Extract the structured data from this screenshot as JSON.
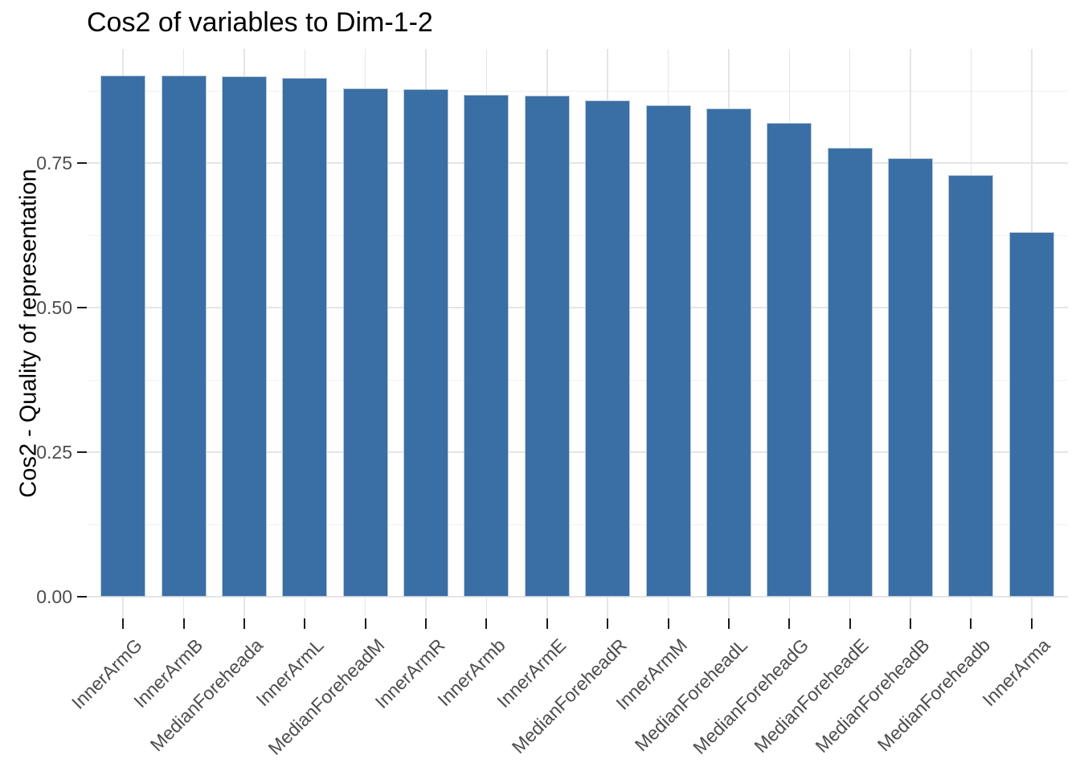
{
  "chart_data": {
    "type": "bar",
    "title": "Cos2 of variables to Dim-1-2",
    "ylabel": "Cos2 - Quality of representation",
    "xlabel": "",
    "legend": "none",
    "grid": true,
    "x_label_angle_deg": 45,
    "categories": [
      "InnerArmG",
      "InnerArmB",
      "MedianForeheada",
      "InnerArmL",
      "MedianForeheadM",
      "InnerArmR",
      "InnerArmb",
      "InnerArmE",
      "MedianForeheadR",
      "InnerArmM",
      "MedianForeheadL",
      "MedianForeheadG",
      "MedianForeheadE",
      "MedianForeheadB",
      "MedianForeheadb",
      "InnerArma"
    ],
    "values": [
      0.902,
      0.901,
      0.9,
      0.897,
      0.879,
      0.878,
      0.868,
      0.866,
      0.859,
      0.85,
      0.845,
      0.819,
      0.777,
      0.759,
      0.729,
      0.63
    ],
    "yticks": [
      0,
      0.25,
      0.5,
      0.75
    ],
    "ytick_labels": [
      "0.00",
      "0.25",
      "0.50",
      "0.75"
    ],
    "minor_yticks": [
      0.125,
      0.375,
      0.625,
      0.875
    ],
    "ylim": [
      0,
      0.947
    ],
    "colors": {
      "bar_fill": "#3A6FA5",
      "bar_border": "#B9C9D9",
      "grid_major": "#E5E5E5",
      "grid_minor": "#F0F0F0",
      "tick": "#1A1A1A",
      "tick_label": "#4D4D4D",
      "title": "#000000",
      "background": "#FFFFFF"
    }
  }
}
